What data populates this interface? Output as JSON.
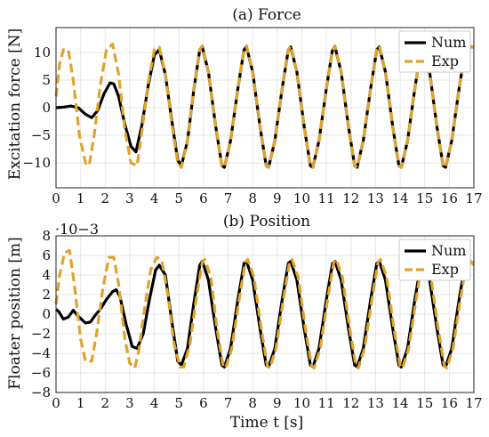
{
  "chart_data": [
    {
      "type": "line",
      "title": "(a) Force",
      "xlabel": "",
      "ylabel": "Excitation force [N]",
      "xlim": [
        0,
        17
      ],
      "ylim": [
        -14.5,
        14.5
      ],
      "xticks": [
        0,
        1,
        2,
        3,
        4,
        5,
        6,
        7,
        8,
        9,
        10,
        11,
        12,
        13,
        14,
        15,
        16,
        17
      ],
      "yticks": [
        -10,
        -5,
        0,
        5,
        10
      ],
      "exponent_label": "",
      "grid": true,
      "legend_position": "top-right",
      "series": [
        {
          "name": "Num",
          "color": "#000000",
          "style": "solid",
          "x": [
            0,
            0.3,
            0.6,
            0.9,
            1.2,
            1.45,
            1.7,
            1.95,
            2.2,
            2.35,
            2.55,
            2.8,
            3.05,
            3.25,
            3.5,
            3.75,
            4.0,
            4.2,
            4.45,
            4.7,
            4.95,
            5.1,
            5.35,
            5.6,
            5.85,
            5.95,
            6.2,
            6.5,
            6.75,
            6.85,
            7.1,
            7.4,
            7.65,
            7.75,
            8.0,
            8.3,
            8.55,
            8.65,
            8.9,
            9.2,
            9.45,
            9.55,
            9.8,
            10.1,
            10.35,
            10.45,
            10.7,
            11.0,
            11.25,
            11.35,
            11.6,
            11.9,
            12.15,
            12.25,
            12.5,
            12.8,
            13.05,
            13.15,
            13.4,
            13.7,
            13.95,
            14.05,
            14.3,
            14.6,
            14.85,
            14.95,
            15.2,
            15.5,
            15.75,
            15.85,
            16.1,
            16.4,
            16.65,
            16.75,
            17.0
          ],
          "y": [
            0,
            0.1,
            0.3,
            0,
            -1.2,
            -1.8,
            -0.5,
            2.5,
            4.5,
            4.3,
            2.0,
            -3.0,
            -7.0,
            -8.0,
            -3.0,
            4.0,
            9.5,
            10.5,
            6.0,
            -2.0,
            -9.5,
            -10.5,
            -6.0,
            3.0,
            10.5,
            11.0,
            6.5,
            -3.5,
            -10.5,
            -10.8,
            -6.0,
            3.5,
            10.5,
            11.0,
            6.5,
            -3.5,
            -10.5,
            -10.8,
            -6.0,
            3.5,
            10.5,
            11.0,
            6.5,
            -3.5,
            -10.5,
            -10.8,
            -6.0,
            3.5,
            10.5,
            11.0,
            6.5,
            -3.5,
            -10.5,
            -10.8,
            -6.0,
            3.5,
            10.5,
            11.0,
            6.5,
            -3.5,
            -10.5,
            -10.8,
            -6.0,
            3.5,
            10.5,
            11.0,
            6.5,
            -3.5,
            -10.5,
            -10.8,
            -6.0,
            3.5,
            10.5,
            11.0,
            11.0
          ]
        },
        {
          "name": "Exp",
          "color": "#E0A32E",
          "style": "dashed",
          "x": [
            0,
            0.15,
            0.3,
            0.5,
            0.7,
            0.95,
            1.2,
            1.35,
            1.55,
            1.8,
            2.05,
            2.3,
            2.55,
            2.8,
            3.05,
            3.3,
            3.5,
            3.75,
            4.0,
            4.2,
            4.45,
            4.7,
            4.95,
            5.1,
            5.35,
            5.6,
            5.85,
            5.95,
            6.2,
            6.5,
            6.75,
            6.85,
            7.1,
            7.4,
            7.65,
            7.75,
            8.0,
            8.3,
            8.55,
            8.65,
            8.9,
            9.2,
            9.45,
            9.55,
            9.8,
            10.1,
            10.35,
            10.45,
            10.7,
            11.0,
            11.25,
            11.35,
            11.6,
            11.9,
            12.15,
            12.25,
            12.5,
            12.8,
            13.05,
            13.15,
            13.4,
            13.7,
            13.95,
            14.05,
            14.3,
            14.6,
            14.85,
            14.95,
            15.2,
            15.5,
            15.75,
            15.85,
            16.1,
            16.4,
            16.65,
            16.75,
            17.0
          ],
          "y": [
            2.0,
            8.0,
            10.5,
            10.5,
            5.0,
            -5.0,
            -10.0,
            -10.5,
            -5.0,
            4.0,
            10.5,
            11.5,
            6.0,
            -4.0,
            -10.0,
            -10.5,
            -4.0,
            4.5,
            10.5,
            11.0,
            6.0,
            -2.5,
            -10.0,
            -10.8,
            -6.0,
            3.0,
            10.5,
            11.2,
            6.5,
            -3.5,
            -10.5,
            -10.8,
            -6.0,
            3.5,
            10.5,
            11.2,
            6.5,
            -3.5,
            -10.5,
            -10.8,
            -6.0,
            3.5,
            10.5,
            11.2,
            6.5,
            -3.5,
            -10.5,
            -10.8,
            -6.0,
            3.5,
            10.5,
            11.2,
            6.5,
            -3.5,
            -10.5,
            -10.8,
            -6.0,
            3.5,
            10.5,
            11.2,
            6.5,
            -3.5,
            -10.5,
            -10.8,
            -6.0,
            3.5,
            10.5,
            11.2,
            6.5,
            -3.5,
            -10.5,
            -10.8,
            -6.0,
            3.5,
            10.5,
            11.2,
            11.0
          ]
        }
      ]
    },
    {
      "type": "line",
      "title": "(b) Position",
      "xlabel": "Time t [s]",
      "ylabel": "Floater position [m]",
      "xlim": [
        0,
        17
      ],
      "ylim": [
        -8,
        8
      ],
      "xticks": [
        0,
        1,
        2,
        3,
        4,
        5,
        6,
        7,
        8,
        9,
        10,
        11,
        12,
        13,
        14,
        15,
        16,
        17
      ],
      "yticks": [
        -8,
        -6,
        -4,
        -2,
        0,
        2,
        4,
        6,
        8
      ],
      "exponent_label": "·10−3",
      "grid": true,
      "legend_position": "top-right",
      "series": [
        {
          "name": "Num",
          "color": "#000000",
          "style": "solid",
          "x": [
            0,
            0.1,
            0.3,
            0.5,
            0.7,
            0.9,
            1.2,
            1.4,
            1.6,
            1.8,
            2.05,
            2.3,
            2.45,
            2.6,
            2.85,
            3.1,
            3.3,
            3.55,
            3.8,
            4.05,
            4.2,
            4.45,
            4.7,
            4.95,
            5.1,
            5.35,
            5.6,
            5.85,
            5.95,
            6.2,
            6.5,
            6.75,
            6.85,
            7.1,
            7.4,
            7.65,
            7.75,
            8.0,
            8.3,
            8.55,
            8.65,
            8.9,
            9.2,
            9.45,
            9.55,
            9.8,
            10.1,
            10.35,
            10.45,
            10.7,
            11.0,
            11.25,
            11.35,
            11.6,
            11.9,
            12.15,
            12.25,
            12.5,
            12.8,
            13.05,
            13.15,
            13.4,
            13.7,
            13.95,
            14.05,
            14.3,
            14.6,
            14.85,
            14.95,
            15.2,
            15.5,
            15.75,
            15.85,
            16.1,
            16.4,
            16.65,
            16.75,
            17.0
          ],
          "y": [
            0.5,
            0.3,
            -0.5,
            -0.3,
            0.4,
            -0.2,
            -0.9,
            -0.8,
            -0.1,
            0.5,
            1.5,
            2.3,
            2.5,
            1.8,
            -1.0,
            -3.3,
            -3.5,
            -2.0,
            1.5,
            4.5,
            5.0,
            4.0,
            -0.5,
            -4.8,
            -5.2,
            -3.5,
            1.0,
            5.0,
            5.4,
            3.5,
            -1.5,
            -5.2,
            -5.4,
            -3.5,
            1.5,
            5.2,
            5.4,
            3.5,
            -1.5,
            -5.2,
            -5.4,
            -3.5,
            1.5,
            5.2,
            5.4,
            3.5,
            -1.5,
            -5.2,
            -5.4,
            -3.5,
            1.5,
            5.2,
            5.4,
            3.5,
            -1.5,
            -5.2,
            -5.4,
            -3.5,
            1.5,
            5.2,
            5.4,
            3.5,
            -1.5,
            -5.2,
            -5.4,
            -3.5,
            1.5,
            5.2,
            5.4,
            3.5,
            -1.5,
            -5.2,
            -5.4,
            -3.5,
            1.5,
            5.2,
            5.4,
            5.2
          ]
        },
        {
          "name": "Exp",
          "color": "#E0A32E",
          "style": "dashed",
          "x": [
            0,
            0.15,
            0.35,
            0.55,
            0.75,
            1.0,
            1.2,
            1.45,
            1.65,
            1.9,
            2.15,
            2.35,
            2.55,
            2.8,
            3.0,
            3.2,
            3.35,
            3.6,
            3.85,
            4.1,
            4.3,
            4.55,
            4.8,
            5.05,
            5.2,
            5.45,
            5.7,
            5.95,
            6.05,
            6.3,
            6.55,
            6.8,
            6.9,
            7.15,
            7.45,
            7.7,
            7.8,
            8.05,
            8.35,
            8.6,
            8.7,
            8.95,
            9.25,
            9.5,
            9.6,
            9.85,
            10.15,
            10.4,
            10.5,
            10.75,
            11.05,
            11.3,
            11.4,
            11.65,
            11.95,
            12.2,
            12.3,
            12.55,
            12.85,
            13.1,
            13.2,
            13.45,
            13.75,
            14.0,
            14.1,
            14.35,
            14.65,
            14.9,
            15.0,
            15.25,
            15.55,
            15.8,
            15.9,
            16.15,
            16.45,
            16.7,
            16.8,
            17.0
          ],
          "y": [
            1.0,
            4.0,
            6.3,
            6.5,
            3.0,
            -2.5,
            -4.8,
            -4.8,
            -2.0,
            2.5,
            5.8,
            5.8,
            3.0,
            -2.5,
            -5.0,
            -5.5,
            -4.0,
            0.5,
            4.5,
            5.8,
            5.5,
            2.0,
            -3.0,
            -5.4,
            -5.4,
            -3.0,
            1.5,
            5.3,
            5.6,
            3.8,
            -1.5,
            -5.3,
            -5.5,
            -3.5,
            1.5,
            5.3,
            5.6,
            3.8,
            -1.5,
            -5.3,
            -5.5,
            -3.5,
            1.5,
            5.3,
            5.6,
            3.8,
            -1.5,
            -5.3,
            -5.5,
            -3.5,
            1.5,
            5.3,
            5.6,
            3.8,
            -1.5,
            -5.3,
            -5.5,
            -3.5,
            1.5,
            5.3,
            5.6,
            3.8,
            -1.5,
            -5.3,
            -5.5,
            -3.5,
            1.5,
            5.3,
            5.6,
            3.8,
            -1.5,
            -5.3,
            -5.5,
            -3.5,
            1.5,
            5.3,
            5.6,
            5.0
          ]
        }
      ]
    }
  ]
}
